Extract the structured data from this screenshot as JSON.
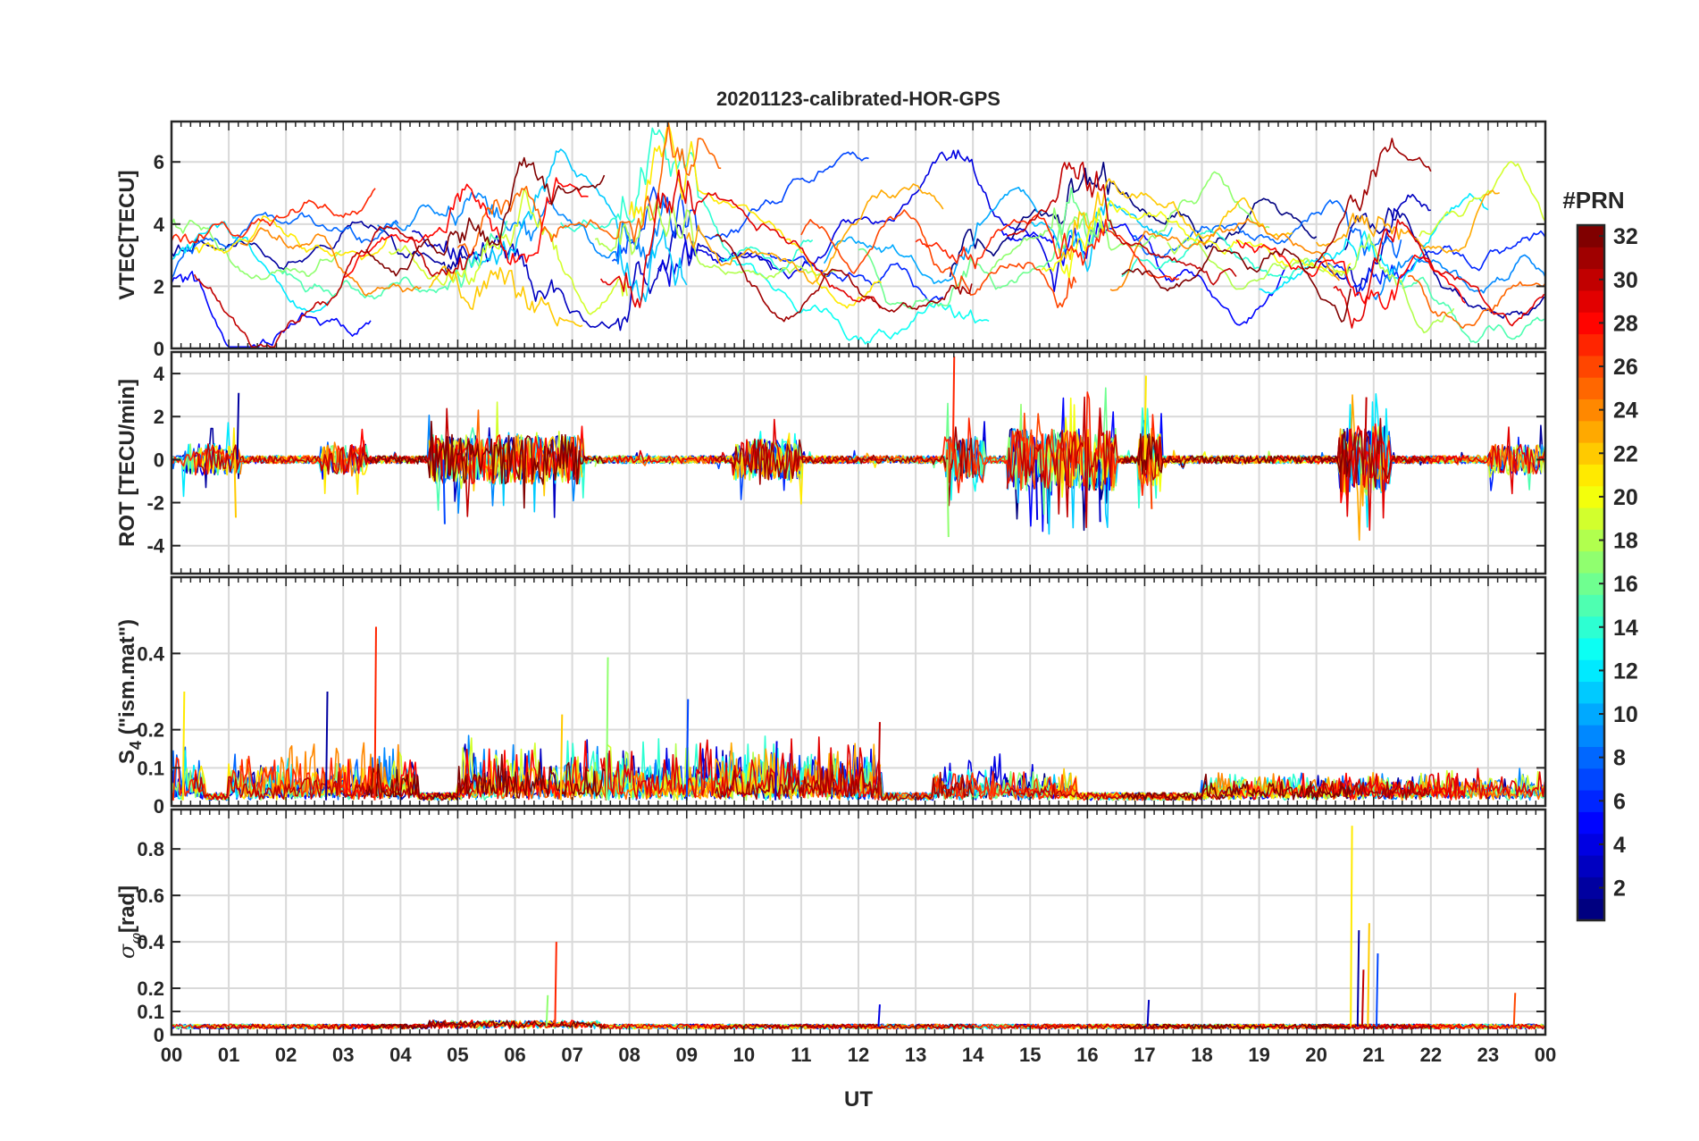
{
  "chart_data": {
    "type": "line",
    "title": "20201123-calibrated-HOR-GPS",
    "xlabel": "UT",
    "x_ticks": [
      "00",
      "01",
      "02",
      "03",
      "04",
      "05",
      "06",
      "07",
      "08",
      "09",
      "10",
      "11",
      "12",
      "13",
      "14",
      "15",
      "16",
      "17",
      "18",
      "19",
      "20",
      "21",
      "22",
      "23",
      "00"
    ],
    "xlim": [
      0,
      24
    ],
    "grid": true,
    "colorbar": {
      "title": "#PRN",
      "range": [
        1,
        32
      ],
      "ticks": [
        2,
        4,
        6,
        8,
        10,
        12,
        14,
        16,
        18,
        20,
        22,
        24,
        26,
        28,
        30,
        32
      ],
      "colormap": "jet"
    },
    "panels": [
      {
        "id": "vtec",
        "ylabel": "VTEC[TECU]",
        "ylim": [
          0,
          7.3
        ],
        "y_ticks": [
          0,
          2,
          4,
          6
        ],
        "y_tick_labels": [
          "0",
          "2",
          "4",
          "6"
        ],
        "series_style": "wander",
        "baseline": 2.9,
        "spread": 1.1,
        "events": [
          [
            0.0,
            0.5,
            0.6
          ],
          [
            4.8,
            6.8,
            1.2
          ],
          [
            7.8,
            9.2,
            2.5
          ],
          [
            13.6,
            14.1,
            1.0
          ],
          [
            15.4,
            16.4,
            2.0
          ],
          [
            20.5,
            21.5,
            1.2
          ]
        ]
      },
      {
        "id": "rot",
        "ylabel": "ROT [TECU/min]",
        "ylim": [
          -5.3,
          5.0
        ],
        "y_ticks": [
          -4,
          -2,
          0,
          2,
          4
        ],
        "y_tick_labels": [
          "-4",
          "-2",
          "0",
          "2",
          "4"
        ],
        "series_style": "noise",
        "baseline": 0,
        "spread": 0.18,
        "events": [
          [
            0.2,
            1.2,
            1.6
          ],
          [
            2.6,
            3.4,
            1.5
          ],
          [
            4.5,
            7.2,
            2.8
          ],
          [
            9.8,
            11.0,
            2.2
          ],
          [
            13.5,
            14.2,
            2.6
          ],
          [
            14.6,
            16.5,
            3.6
          ],
          [
            16.9,
            17.3,
            3.0
          ],
          [
            20.4,
            21.3,
            4.0
          ],
          [
            23.0,
            24.0,
            1.5
          ]
        ],
        "peaks": [
          [
            13.65,
            4.8
          ],
          [
            13.55,
            -3.6
          ],
          [
            17.0,
            3.9
          ],
          [
            1.15,
            3.1
          ],
          [
            1.1,
            -2.7
          ],
          [
            4.75,
            -3.0
          ],
          [
            20.85,
            2.9
          ],
          [
            15.1,
            -2.8
          ],
          [
            16.2,
            -2.9
          ],
          [
            17.1,
            -2.3
          ]
        ]
      },
      {
        "id": "s4",
        "ylabel": "S4 (\"ism.mat\")",
        "ylabel_base": "S",
        "ylabel_sub": "4",
        "ylabel_rest": " (\"ism.mat\")",
        "ylim": [
          0,
          0.6
        ],
        "y_ticks": [
          0,
          0.1,
          0.2,
          0.4
        ],
        "y_tick_labels": [
          "0",
          "0.1",
          "0.2",
          "0.4"
        ],
        "series_style": "scint",
        "baseline": 0.015,
        "spread": 0.02,
        "events": [
          [
            0.0,
            0.6,
            0.18
          ],
          [
            1.0,
            4.3,
            0.14
          ],
          [
            5.0,
            12.4,
            0.15
          ],
          [
            13.3,
            15.8,
            0.1
          ],
          [
            18.0,
            24.0,
            0.07
          ]
        ],
        "peaks": [
          [
            3.55,
            0.47
          ],
          [
            7.6,
            0.39
          ],
          [
            0.2,
            0.3
          ],
          [
            2.7,
            0.3
          ],
          [
            6.8,
            0.24
          ],
          [
            9.0,
            0.28
          ],
          [
            12.35,
            0.22
          ],
          [
            10.55,
            0.17
          ]
        ]
      },
      {
        "id": "sigma",
        "ylabel": "σφ[rad]",
        "ylabel_base": "σ",
        "ylabel_sub": "φ",
        "ylabel_rest": "[rad]",
        "ylim": [
          0,
          0.97
        ],
        "y_ticks": [
          0,
          0.1,
          0.2,
          0.4,
          0.6,
          0.8
        ],
        "y_tick_labels": [
          "0",
          "0.1",
          "0.2",
          "0.4",
          "0.6",
          "0.8"
        ],
        "series_style": "phase",
        "baseline": 0.035,
        "spread": 0.01,
        "events": [
          [
            4.5,
            7.5,
            0.03
          ]
        ],
        "peaks": [
          [
            6.7,
            0.4
          ],
          [
            6.55,
            0.17
          ],
          [
            20.6,
            0.9
          ],
          [
            20.72,
            0.45
          ],
          [
            20.9,
            0.48
          ],
          [
            21.05,
            0.35
          ],
          [
            20.8,
            0.28
          ],
          [
            12.35,
            0.13
          ],
          [
            17.05,
            0.15
          ],
          [
            23.45,
            0.18
          ]
        ]
      }
    ],
    "series": [
      {
        "prn": 1,
        "segments": [
          [
            13.6,
            20.0
          ]
        ]
      },
      {
        "prn": 2,
        "segments": [
          [
            0.0,
            5.2
          ],
          [
            20.5,
            24.0
          ]
        ]
      },
      {
        "prn": 3,
        "segments": [
          [
            4.2,
            10.5
          ],
          [
            20.0,
            22.0
          ]
        ]
      },
      {
        "prn": 4,
        "segments": [
          [
            8.5,
            15.5
          ]
        ]
      },
      {
        "prn": 5,
        "segments": [
          [
            0.0,
            3.5
          ],
          [
            14.5,
            19.5
          ]
        ]
      },
      {
        "prn": 6,
        "segments": [
          [
            10.4,
            13.5
          ],
          [
            20.2,
            24.0
          ]
        ]
      },
      {
        "prn": 7,
        "segments": [
          [
            7.7,
            12.2
          ]
        ]
      },
      {
        "prn": 8,
        "segments": [
          [
            0.0,
            4.0
          ],
          [
            16.8,
            21.5
          ]
        ]
      },
      {
        "prn": 9,
        "segments": [
          [
            3.6,
            8.6
          ],
          [
            21.0,
            24.0
          ]
        ]
      },
      {
        "prn": 10,
        "segments": [
          [
            11.4,
            15.2
          ]
        ]
      },
      {
        "prn": 11,
        "segments": [
          [
            5.2,
            9.0
          ],
          [
            15.0,
            17.5
          ]
        ]
      },
      {
        "prn": 12,
        "segments": [
          [
            0.0,
            2.8
          ],
          [
            19.0,
            23.0
          ]
        ]
      },
      {
        "prn": 13,
        "segments": [
          [
            9.6,
            14.3
          ]
        ]
      },
      {
        "prn": 14,
        "segments": [
          [
            6.8,
            11.2
          ],
          [
            16.6,
            19.9
          ]
        ]
      },
      {
        "prn": 15,
        "segments": [
          [
            1.9,
            5.9
          ],
          [
            21.5,
            24.0
          ]
        ]
      },
      {
        "prn": 16,
        "segments": [
          [
            12.0,
            16.5
          ]
        ]
      },
      {
        "prn": 17,
        "segments": [
          [
            0.0,
            3.0
          ],
          [
            14.3,
            19.2
          ]
        ]
      },
      {
        "prn": 18,
        "segments": [
          [
            7.4,
            11.6
          ],
          [
            17.4,
            22.4
          ]
        ]
      },
      {
        "prn": 19,
        "segments": [
          [
            3.8,
            8.0
          ],
          [
            21.8,
            24.0
          ]
        ]
      },
      {
        "prn": 20,
        "segments": [
          [
            15.2,
            20.6
          ]
        ]
      },
      {
        "prn": 21,
        "segments": [
          [
            0.4,
            3.8
          ],
          [
            8.0,
            12.4
          ]
        ]
      },
      {
        "prn": 22,
        "segments": [
          [
            4.5,
            7.2
          ],
          [
            15.5,
            19.6
          ]
        ]
      },
      {
        "prn": 23,
        "segments": [
          [
            9.0,
            13.5
          ],
          [
            20.0,
            23.2
          ]
        ]
      },
      {
        "prn": 24,
        "segments": [
          [
            1.2,
            4.4
          ],
          [
            16.4,
            20.4
          ]
        ]
      },
      {
        "prn": 25,
        "segments": [
          [
            5.0,
            9.6
          ],
          [
            21.6,
            24.0
          ]
        ]
      },
      {
        "prn": 26,
        "segments": [
          [
            11.0,
            15.8
          ]
        ]
      },
      {
        "prn": 27,
        "segments": [
          [
            0.0,
            3.6
          ],
          [
            13.0,
            17.6
          ]
        ]
      },
      {
        "prn": 28,
        "segments": [
          [
            3.0,
            7.3
          ],
          [
            18.6,
            22.6
          ]
        ]
      },
      {
        "prn": 29,
        "segments": [
          [
            7.5,
            12.4
          ],
          [
            20.3,
            24.0
          ]
        ]
      },
      {
        "prn": 30,
        "segments": [
          [
            0.4,
            5.3
          ],
          [
            14.6,
            18.6
          ]
        ]
      },
      {
        "prn": 31,
        "segments": [
          [
            9.5,
            14.0
          ],
          [
            19.8,
            22.0
          ]
        ]
      },
      {
        "prn": 32,
        "segments": [
          [
            3.4,
            7.6
          ],
          [
            16.6,
            20.6
          ]
        ]
      }
    ]
  }
}
